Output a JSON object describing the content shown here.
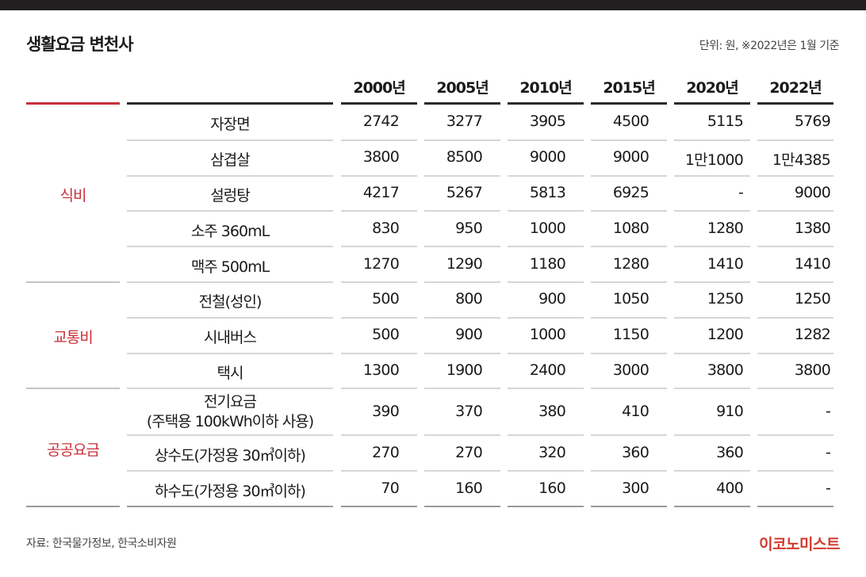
{
  "header": {
    "title": "생활요금 변천사",
    "unit_note": "단위: 원,   ※2022년은 1월 기준"
  },
  "footer": {
    "source": "자료: 한국물가정보, 한국소비자원",
    "brand": "이코노미스트"
  },
  "chart_data": {
    "type": "table",
    "title": "생활요금 변천사",
    "columns": [
      "2000년",
      "2005년",
      "2010년",
      "2015년",
      "2020년",
      "2022년"
    ],
    "groups": [
      {
        "category": "식비",
        "rows": [
          {
            "item": "자장면",
            "values": [
              "2742",
              "3277",
              "3905",
              "4500",
              "5115",
              "5769"
            ]
          },
          {
            "item": "삼겹살",
            "values": [
              "3800",
              "8500",
              "9000",
              "9000",
              "1만1000",
              "1만4385"
            ]
          },
          {
            "item": "설렁탕",
            "values": [
              "4217",
              "5267",
              "5813",
              "6925",
              "-",
              "9000"
            ]
          },
          {
            "item": "소주 360mL",
            "values": [
              "830",
              "950",
              "1000",
              "1080",
              "1280",
              "1380"
            ]
          },
          {
            "item": "맥주 500mL",
            "values": [
              "1270",
              "1290",
              "1180",
              "1280",
              "1410",
              "1410"
            ]
          }
        ]
      },
      {
        "category": "교통비",
        "rows": [
          {
            "item": "전철(성인)",
            "values": [
              "500",
              "800",
              "900",
              "1050",
              "1250",
              "1250"
            ]
          },
          {
            "item": "시내버스",
            "values": [
              "500",
              "900",
              "1000",
              "1150",
              "1200",
              "1282"
            ]
          },
          {
            "item": "택시",
            "values": [
              "1300",
              "1900",
              "2400",
              "3000",
              "3800",
              "3800"
            ]
          }
        ]
      },
      {
        "category": "공공요금",
        "rows": [
          {
            "item": "전기요금",
            "item_line2": "(주택용 100kWh이하 사용)",
            "values": [
              "390",
              "370",
              "380",
              "410",
              "910",
              "-"
            ]
          },
          {
            "item": "상수도(가정용 30㎥이하)",
            "values": [
              "270",
              "270",
              "320",
              "360",
              "360",
              "-"
            ]
          },
          {
            "item": "하수도(가정용 30㎥이하)",
            "values": [
              "70",
              "160",
              "160",
              "300",
              "400",
              "-"
            ]
          }
        ]
      }
    ]
  }
}
